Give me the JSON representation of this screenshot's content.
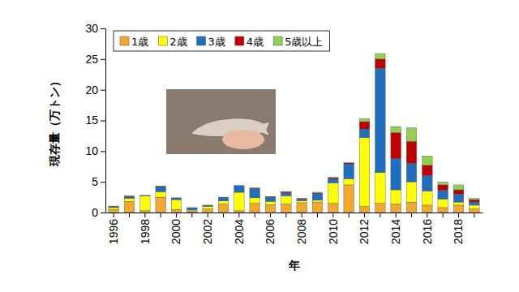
{
  "chart_data": {
    "type": "bar",
    "stacked": true,
    "x_label": "年",
    "y_label": "現存量（万トン）",
    "categories": [
      "1996",
      null,
      "1998",
      null,
      "2000",
      null,
      "2002",
      null,
      "2004",
      null,
      "2006",
      null,
      "2008",
      null,
      "2010",
      null,
      "2012",
      null,
      "2014",
      null,
      "2016",
      null,
      "2018",
      null
    ],
    "series": [
      {
        "name": "1歳",
        "color": "#f0a830",
        "values": [
          0.5,
          1.8,
          0.3,
          2.5,
          0.5,
          0.2,
          0.6,
          1.4,
          0.3,
          1.5,
          1.3,
          1.4,
          1.6,
          1.7,
          1.5,
          4.5,
          1.0,
          1.5,
          1.4,
          1.7,
          1.2,
          0.8,
          1.2,
          0.6
        ]
      },
      {
        "name": "2歳",
        "color": "#ffff00",
        "values": [
          0.3,
          0.5,
          2.4,
          0.9,
          1.6,
          0.2,
          0.4,
          0.5,
          3.0,
          0.9,
          0.5,
          1.3,
          0.3,
          0.3,
          3.3,
          1.0,
          11.2,
          5.0,
          2.3,
          3.3,
          2.3,
          1.4,
          0.5,
          0.6
        ]
      },
      {
        "name": "3歳",
        "color": "#1f6fbf",
        "values": [
          0.2,
          0.3,
          0.1,
          0.8,
          0.3,
          0.4,
          0.2,
          0.6,
          1.1,
          1.5,
          0.7,
          0.5,
          0.3,
          1.1,
          0.7,
          2.4,
          1.4,
          17.0,
          5.1,
          3.0,
          2.5,
          1.4,
          1.3,
          0.5
        ]
      },
      {
        "name": "4歳",
        "color": "#c00000",
        "values": [
          0.05,
          0.1,
          0,
          0.1,
          0,
          0,
          0,
          0,
          0,
          0.1,
          0.1,
          0.2,
          0.1,
          0.1,
          0.2,
          0.2,
          1.2,
          1.5,
          4.2,
          3.6,
          1.7,
          0.9,
          0.7,
          0.4
        ]
      },
      {
        "name": "5歳以上",
        "color": "#92d050",
        "values": [
          0,
          0,
          0,
          0,
          0,
          0,
          0,
          0,
          0,
          0,
          0,
          0,
          0,
          0.1,
          0,
          0,
          0.5,
          0.9,
          1.0,
          2.2,
          1.5,
          0.5,
          0.8,
          0.2
        ]
      }
    ],
    "ylim": [
      0,
      30
    ],
    "yticks": [
      0,
      5,
      10,
      15,
      20,
      25,
      30
    ],
    "grid": false,
    "legend": "upper left"
  }
}
